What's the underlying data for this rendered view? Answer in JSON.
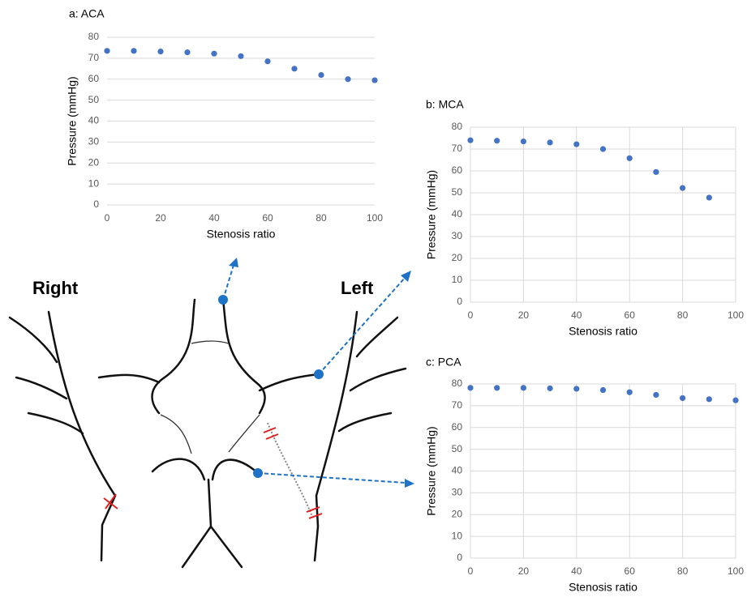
{
  "chart_data": [
    {
      "type": "scatter",
      "title": "a: ACA",
      "x_label": "Stenosis ratio",
      "y_label": "Pressure (mmHg)",
      "x": [
        0,
        10,
        20,
        30,
        40,
        50,
        60,
        70,
        80,
        90,
        100
      ],
      "values": [
        73.5,
        73.5,
        73.2,
        72.8,
        72.2,
        71,
        68.5,
        65,
        62,
        60,
        59.5
      ],
      "color": "#4472c4",
      "xlim": [
        0,
        100
      ],
      "xticks": [
        0,
        20,
        40,
        60,
        80,
        100
      ],
      "ylim": [
        0,
        80
      ],
      "yticks": [
        0,
        10,
        20,
        30,
        40,
        50,
        60,
        70,
        80
      ],
      "grid": "y"
    },
    {
      "type": "scatter",
      "title": "b: MCA",
      "x_label": "Stenosis ratio",
      "y_label": "Pressure (mmHg)",
      "x": [
        0,
        10,
        20,
        30,
        40,
        50,
        60,
        70,
        80,
        90
      ],
      "values": [
        74,
        73.8,
        73.5,
        73,
        72.2,
        70,
        65.8,
        59.5,
        52.2,
        47.8
      ],
      "color": "#4472c4",
      "xlim": [
        0,
        100
      ],
      "xticks": [
        0,
        20,
        40,
        60,
        80,
        100
      ],
      "ylim": [
        0,
        80
      ],
      "yticks": [
        0,
        10,
        20,
        30,
        40,
        50,
        60,
        70,
        80
      ],
      "grid": "both"
    },
    {
      "type": "scatter",
      "title": "c: PCA",
      "x_label": "Stenosis ratio",
      "y_label": "Pressure (mmHg)",
      "x": [
        0,
        10,
        20,
        30,
        40,
        50,
        60,
        70,
        80,
        90,
        100
      ],
      "values": [
        78.2,
        78.2,
        78.2,
        78,
        77.8,
        77.2,
        76.2,
        75,
        73.5,
        73,
        72.5
      ],
      "color": "#4472c4",
      "xlim": [
        0,
        100
      ],
      "xticks": [
        0,
        20,
        40,
        60,
        80,
        100
      ],
      "ylim": [
        0,
        80
      ],
      "yticks": [
        0,
        10,
        20,
        30,
        40,
        50,
        60,
        70,
        80
      ],
      "grid": "both"
    }
  ],
  "diagram": {
    "labels": [
      "Right",
      "Left"
    ]
  }
}
